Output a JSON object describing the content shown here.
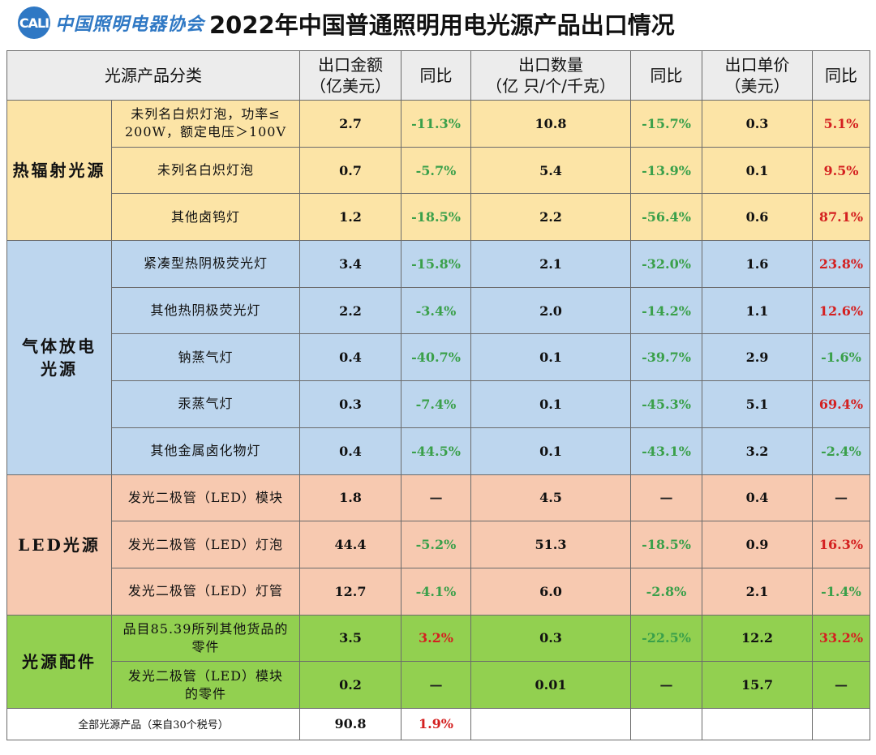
{
  "header": {
    "logo_mark": "CALI",
    "logo_text": "中国照明电器协会",
    "title": "2022年中国普通照明用电光源产品出口情况"
  },
  "columns": {
    "category": "光源产品分类",
    "export_value": [
      "出口金额",
      "（亿美元）"
    ],
    "yoy1": "同比",
    "export_qty": [
      "出口数量",
      "（亿 只/个/千克）"
    ],
    "yoy2": "同比",
    "unit_price": [
      "出口单价",
      "（美元）"
    ],
    "yoy3": "同比"
  },
  "groups": [
    {
      "category": [
        "热辐射光源"
      ],
      "rows": [
        {
          "name": [
            "未列名白炽灯泡，功率≤",
            "200W，额定电压＞100V"
          ],
          "value": "2.7",
          "yoy1": "-11.3%",
          "qty": "10.8",
          "yoy2": "-15.7%",
          "price": "0.3",
          "yoy3": "5.1%"
        },
        {
          "name": [
            "未列名白炽灯泡"
          ],
          "value": "0.7",
          "yoy1": "-5.7%",
          "qty": "5.4",
          "yoy2": "-13.9%",
          "price": "0.1",
          "yoy3": "9.5%"
        },
        {
          "name": [
            "其他卤钨灯"
          ],
          "value": "1.2",
          "yoy1": "-18.5%",
          "qty": "2.2",
          "yoy2": "-56.4%",
          "price": "0.6",
          "yoy3": "87.1%"
        }
      ]
    },
    {
      "category": [
        "气体放电",
        "光源"
      ],
      "rows": [
        {
          "name": [
            "紧凑型热阴极荧光灯"
          ],
          "value": "3.4",
          "yoy1": "-15.8%",
          "qty": "2.1",
          "yoy2": "-32.0%",
          "price": "1.6",
          "yoy3": "23.8%"
        },
        {
          "name": [
            "其他热阴极荧光灯"
          ],
          "value": "2.2",
          "yoy1": "-3.4%",
          "qty": "2.0",
          "yoy2": "-14.2%",
          "price": "1.1",
          "yoy3": "12.6%"
        },
        {
          "name": [
            "钠蒸气灯"
          ],
          "value": "0.4",
          "yoy1": "-40.7%",
          "qty": "0.1",
          "yoy2": "-39.7%",
          "price": "2.9",
          "yoy3": "-1.6%"
        },
        {
          "name": [
            "汞蒸气灯"
          ],
          "value": "0.3",
          "yoy1": "-7.4%",
          "qty": "0.1",
          "yoy2": "-45.3%",
          "price": "5.1",
          "yoy3": "69.4%"
        },
        {
          "name": [
            "其他金属卤化物灯"
          ],
          "value": "0.4",
          "yoy1": "-44.5%",
          "qty": "0.1",
          "yoy2": "-43.1%",
          "price": "3.2",
          "yoy3": "-2.4%"
        }
      ]
    },
    {
      "category": [
        "LED光源"
      ],
      "rows": [
        {
          "name": [
            "发光二极管（LED）模块"
          ],
          "value": "1.8",
          "yoy1": "—",
          "qty": "4.5",
          "yoy2": "—",
          "price": "0.4",
          "yoy3": "—"
        },
        {
          "name": [
            "发光二极管（LED）灯泡"
          ],
          "value": "44.4",
          "yoy1": "-5.2%",
          "qty": "51.3",
          "yoy2": "-18.5%",
          "price": "0.9",
          "yoy3": "16.3%"
        },
        {
          "name": [
            "发光二极管（LED）灯管"
          ],
          "value": "12.7",
          "yoy1": "-4.1%",
          "qty": "6.0",
          "yoy2": "-2.8%",
          "price": "2.1",
          "yoy3": "-1.4%"
        }
      ]
    },
    {
      "category": [
        "光源配件"
      ],
      "rows": [
        {
          "name": [
            "品目85.39所列其他货品的",
            "零件"
          ],
          "value": "3.5",
          "yoy1": "3.2%",
          "qty": "0.3",
          "yoy2": "-22.5%",
          "price": "12.2",
          "yoy3": "33.2%"
        },
        {
          "name": [
            "发光二极管（LED）模块",
            "的零件"
          ],
          "value": "0.2",
          "yoy1": "—",
          "qty": "0.01",
          "yoy2": "—",
          "price": "15.7",
          "yoy3": "—"
        }
      ]
    }
  ],
  "total": {
    "label": "全部光源产品（来自30个税号）",
    "value": "90.8",
    "yoy1": "1.9%"
  },
  "colors": {
    "thermal": "#fce4a6",
    "gas": "#bdd6ee",
    "led": "#f7c9b0",
    "accessories": "#92d050",
    "negative": "#3aa04a",
    "positive": "#d42020",
    "brand": "#2f78c4"
  }
}
